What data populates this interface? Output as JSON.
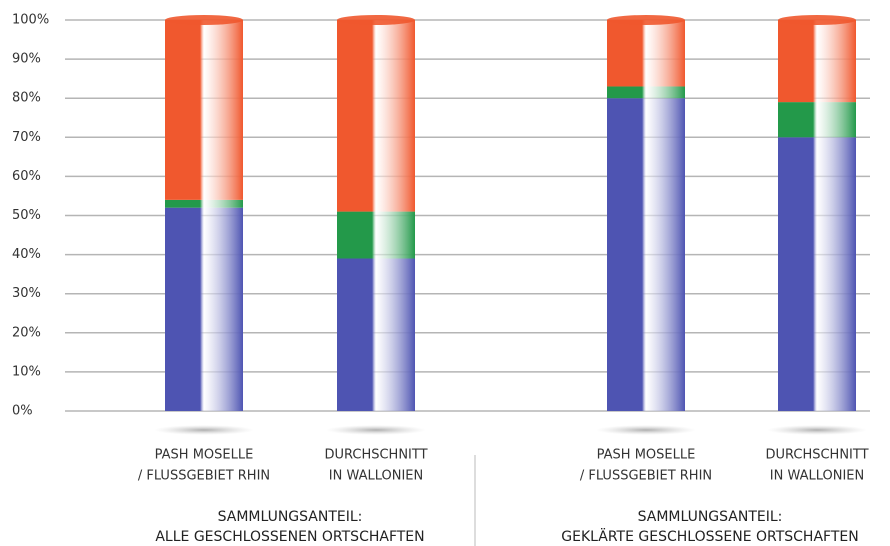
{
  "chart_data": {
    "type": "bar",
    "stacked": true,
    "categories": [
      [
        "PASH MOSELLE",
        "/ FLUSSGEBIET RHIN"
      ],
      [
        "DURCHSCHNITT",
        "IN WALLONIEN"
      ],
      [
        "PASH MOSELLE",
        "/ FLUSSGEBIET RHIN"
      ],
      [
        "DURCHSCHNITT",
        "IN WALLONIEN"
      ]
    ],
    "groups": [
      [
        "SAMMLUNGSANTEIL:",
        "ALLE GESCHLOSSENEN ORTSCHAFTEN"
      ],
      [
        "SAMMLUNGSANTEIL:",
        "GEKLÄRTE GESCHLOSSENE ORTSCHAFTEN"
      ]
    ],
    "series": [
      {
        "color": "#4e54b2",
        "values": [
          52,
          39,
          80,
          70
        ]
      },
      {
        "color": "#23994a",
        "values": [
          2,
          12,
          3,
          9
        ]
      },
      {
        "color": "#f0582e",
        "values": [
          46,
          49,
          17,
          21
        ]
      }
    ],
    "ylim": [
      0,
      100
    ],
    "yticks": [
      {
        "value": 0,
        "label": "0%"
      },
      {
        "value": 10,
        "label": "10%"
      },
      {
        "value": 20,
        "label": "20%"
      },
      {
        "value": 30,
        "label": "30%"
      },
      {
        "value": 40,
        "label": "40%"
      },
      {
        "value": 50,
        "label": "50%"
      },
      {
        "value": 60,
        "label": "60%"
      },
      {
        "value": 70,
        "label": "70%"
      },
      {
        "value": 80,
        "label": "80%"
      },
      {
        "value": 90,
        "label": "90%"
      },
      {
        "value": 100,
        "label": "100%"
      }
    ],
    "grid": true
  }
}
